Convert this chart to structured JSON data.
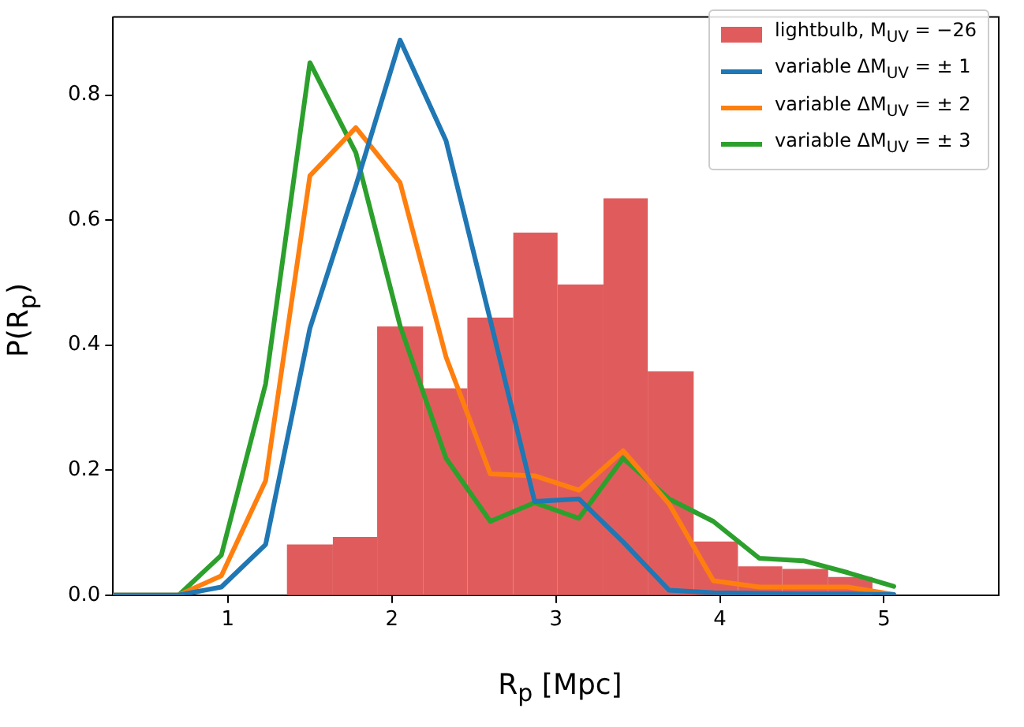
{
  "chart_data": {
    "type": "histogram",
    "xlabel": "R$_{p}$ [Mpc]",
    "ylabel": "P(R$_{p}$)",
    "xlim": [
      0.3,
      5.7
    ],
    "xticks": [
      1,
      2,
      3,
      4,
      5
    ],
    "ylim": [
      0,
      0.925
    ],
    "yticks": [
      {
        "value": 0,
        "label": "0.0"
      },
      {
        "value": 0.2,
        "label": "0.2"
      },
      {
        "value": 0.4,
        "label": "0.4"
      },
      {
        "value": 0.6,
        "label": "0.6"
      },
      {
        "value": 0.8,
        "label": "0.8"
      }
    ],
    "grid": false,
    "legend": "top right",
    "series": [
      {
        "name": "lightbulb, M$_{UV}$ = −26",
        "color": "#e05c5c",
        "bins": [
          1.36,
          1.64,
          1.91,
          2.19,
          2.46,
          2.74,
          3.01,
          3.29,
          3.56,
          3.84,
          4.11,
          4.38,
          4.66,
          4.93
        ],
        "values": [
          0.081,
          0.093,
          0.43,
          0.331,
          0.444,
          0.58,
          0.497,
          0.635,
          0.358,
          0.086,
          0.046,
          0.042,
          0.029
        ]
      },
      {
        "type": "line",
        "name": "variable ΔM$_{UV}$ = ± 1",
        "color": "#1f77b4",
        "x": [
          0.3,
          0.7,
          0.96,
          1.23,
          1.5,
          1.78,
          2.05,
          2.33,
          2.6,
          2.87,
          3.14,
          3.41,
          3.69,
          3.96,
          4.24,
          4.51,
          4.78,
          5.06
        ],
        "values": [
          0,
          0,
          0.013,
          0.081,
          0.427,
          0.655,
          0.888,
          0.727,
          0.44,
          0.15,
          0.154,
          0.085,
          0.008,
          0.004,
          0.003,
          0.002,
          0.002,
          0.001
        ]
      },
      {
        "type": "line",
        "name": "variable ΔM$_{UV}$ = ± 2",
        "color": "#ff7f0e",
        "x": [
          0.3,
          0.7,
          0.96,
          1.23,
          1.5,
          1.78,
          2.05,
          2.33,
          2.6,
          2.87,
          3.14,
          3.41,
          3.69,
          3.96,
          4.24,
          4.51,
          4.78,
          5.06
        ],
        "values": [
          0,
          0,
          0.031,
          0.183,
          0.671,
          0.748,
          0.66,
          0.381,
          0.194,
          0.191,
          0.168,
          0.231,
          0.146,
          0.023,
          0.013,
          0.013,
          0.013,
          0.001
        ]
      },
      {
        "type": "line",
        "name": "variable ΔM$_{UV}$ = ± 3",
        "color": "#2ca02c",
        "x": [
          0.3,
          0.7,
          0.96,
          1.23,
          1.5,
          1.78,
          2.05,
          2.33,
          2.6,
          2.87,
          3.14,
          3.41,
          3.69,
          3.96,
          4.24,
          4.51,
          4.78,
          5.06
        ],
        "values": [
          0,
          0,
          0.064,
          0.338,
          0.852,
          0.708,
          0.431,
          0.219,
          0.118,
          0.148,
          0.123,
          0.219,
          0.154,
          0.118,
          0.059,
          0.055,
          0.036,
          0.014
        ]
      }
    ]
  }
}
